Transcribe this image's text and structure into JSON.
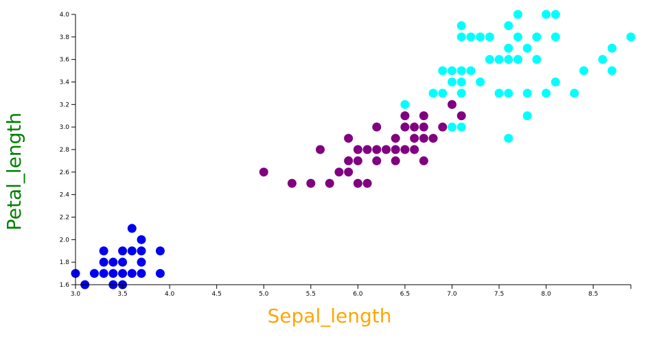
{
  "chart_data": {
    "type": "scatter",
    "xlabel": "Sepal_length",
    "ylabel": "Petal_length",
    "xlim": [
      3.0,
      8.9
    ],
    "ylim": [
      1.6,
      4.0
    ],
    "x_ticks": [
      "3.0",
      "3.5",
      "4.0",
      "4.5",
      "5.0",
      "5.5",
      "6.0",
      "6.5",
      "7.0",
      "7.5",
      "8.0",
      "8.5"
    ],
    "y_ticks": [
      "1.6",
      "1.8",
      "2.0",
      "2.2",
      "2.4",
      "2.6",
      "2.8",
      "3.0",
      "3.2",
      "3.4",
      "3.6",
      "3.8",
      "4.0"
    ],
    "grid": false,
    "colors": {
      "xlabel": "#ffa500",
      "ylabel": "#008000"
    },
    "series": [
      {
        "color": "#0000ee",
        "points": [
          [
            3.0,
            1.7
          ],
          [
            3.1,
            1.6
          ],
          [
            3.2,
            1.7
          ],
          [
            3.3,
            1.9
          ],
          [
            3.3,
            1.8
          ],
          [
            3.3,
            1.7
          ],
          [
            3.4,
            1.8
          ],
          [
            3.4,
            1.7
          ],
          [
            3.4,
            1.6
          ],
          [
            3.5,
            1.9
          ],
          [
            3.5,
            1.8
          ],
          [
            3.5,
            1.7
          ],
          [
            3.5,
            1.6
          ],
          [
            3.6,
            2.1
          ],
          [
            3.6,
            1.9
          ],
          [
            3.6,
            1.7
          ],
          [
            3.7,
            2.0
          ],
          [
            3.7,
            1.9
          ],
          [
            3.7,
            1.8
          ],
          [
            3.7,
            1.7
          ],
          [
            3.9,
            1.9
          ],
          [
            3.9,
            1.7
          ]
        ]
      },
      {
        "color": "#800080",
        "points": [
          [
            5.0,
            2.6
          ],
          [
            5.3,
            2.5
          ],
          [
            5.5,
            2.5
          ],
          [
            5.6,
            2.8
          ],
          [
            5.7,
            2.5
          ],
          [
            5.8,
            2.6
          ],
          [
            5.9,
            2.9
          ],
          [
            5.9,
            2.7
          ],
          [
            5.9,
            2.6
          ],
          [
            6.0,
            2.8
          ],
          [
            6.0,
            2.7
          ],
          [
            6.0,
            2.5
          ],
          [
            6.1,
            2.8
          ],
          [
            6.1,
            2.5
          ],
          [
            6.2,
            3.0
          ],
          [
            6.2,
            2.8
          ],
          [
            6.2,
            2.7
          ],
          [
            6.3,
            2.8
          ],
          [
            6.4,
            2.9
          ],
          [
            6.4,
            2.8
          ],
          [
            6.4,
            2.7
          ],
          [
            6.5,
            3.1
          ],
          [
            6.5,
            3.0
          ],
          [
            6.5,
            2.8
          ],
          [
            6.6,
            3.0
          ],
          [
            6.6,
            2.9
          ],
          [
            6.6,
            2.8
          ],
          [
            6.7,
            3.1
          ],
          [
            6.7,
            3.0
          ],
          [
            6.7,
            2.9
          ],
          [
            6.7,
            2.7
          ],
          [
            6.8,
            2.9
          ],
          [
            6.9,
            3.0
          ],
          [
            7.0,
            3.2
          ],
          [
            7.1,
            3.1
          ]
        ]
      },
      {
        "color": "#00ffff",
        "points": [
          [
            6.5,
            3.2
          ],
          [
            6.8,
            3.3
          ],
          [
            6.9,
            3.5
          ],
          [
            6.9,
            3.3
          ],
          [
            7.0,
            3.5
          ],
          [
            7.0,
            3.4
          ],
          [
            7.0,
            3.0
          ],
          [
            7.1,
            3.9
          ],
          [
            7.1,
            3.8
          ],
          [
            7.1,
            3.5
          ],
          [
            7.1,
            3.4
          ],
          [
            7.1,
            3.3
          ],
          [
            7.1,
            3.0
          ],
          [
            7.2,
            3.8
          ],
          [
            7.2,
            3.5
          ],
          [
            7.3,
            3.8
          ],
          [
            7.3,
            3.4
          ],
          [
            7.4,
            3.8
          ],
          [
            7.4,
            3.6
          ],
          [
            7.5,
            3.6
          ],
          [
            7.5,
            3.3
          ],
          [
            7.6,
            3.9
          ],
          [
            7.6,
            3.7
          ],
          [
            7.6,
            3.6
          ],
          [
            7.6,
            3.3
          ],
          [
            7.6,
            2.9
          ],
          [
            7.7,
            4.0
          ],
          [
            7.7,
            3.8
          ],
          [
            7.7,
            3.6
          ],
          [
            7.8,
            3.7
          ],
          [
            7.8,
            3.3
          ],
          [
            7.8,
            3.1
          ],
          [
            7.9,
            3.8
          ],
          [
            7.9,
            3.6
          ],
          [
            8.0,
            4.0
          ],
          [
            8.0,
            3.3
          ],
          [
            8.1,
            4.0
          ],
          [
            8.1,
            3.8
          ],
          [
            8.1,
            3.4
          ],
          [
            8.3,
            3.3
          ],
          [
            8.4,
            3.5
          ],
          [
            8.6,
            3.6
          ],
          [
            8.7,
            3.7
          ],
          [
            8.7,
            3.5
          ],
          [
            8.9,
            3.8
          ]
        ]
      }
    ]
  }
}
